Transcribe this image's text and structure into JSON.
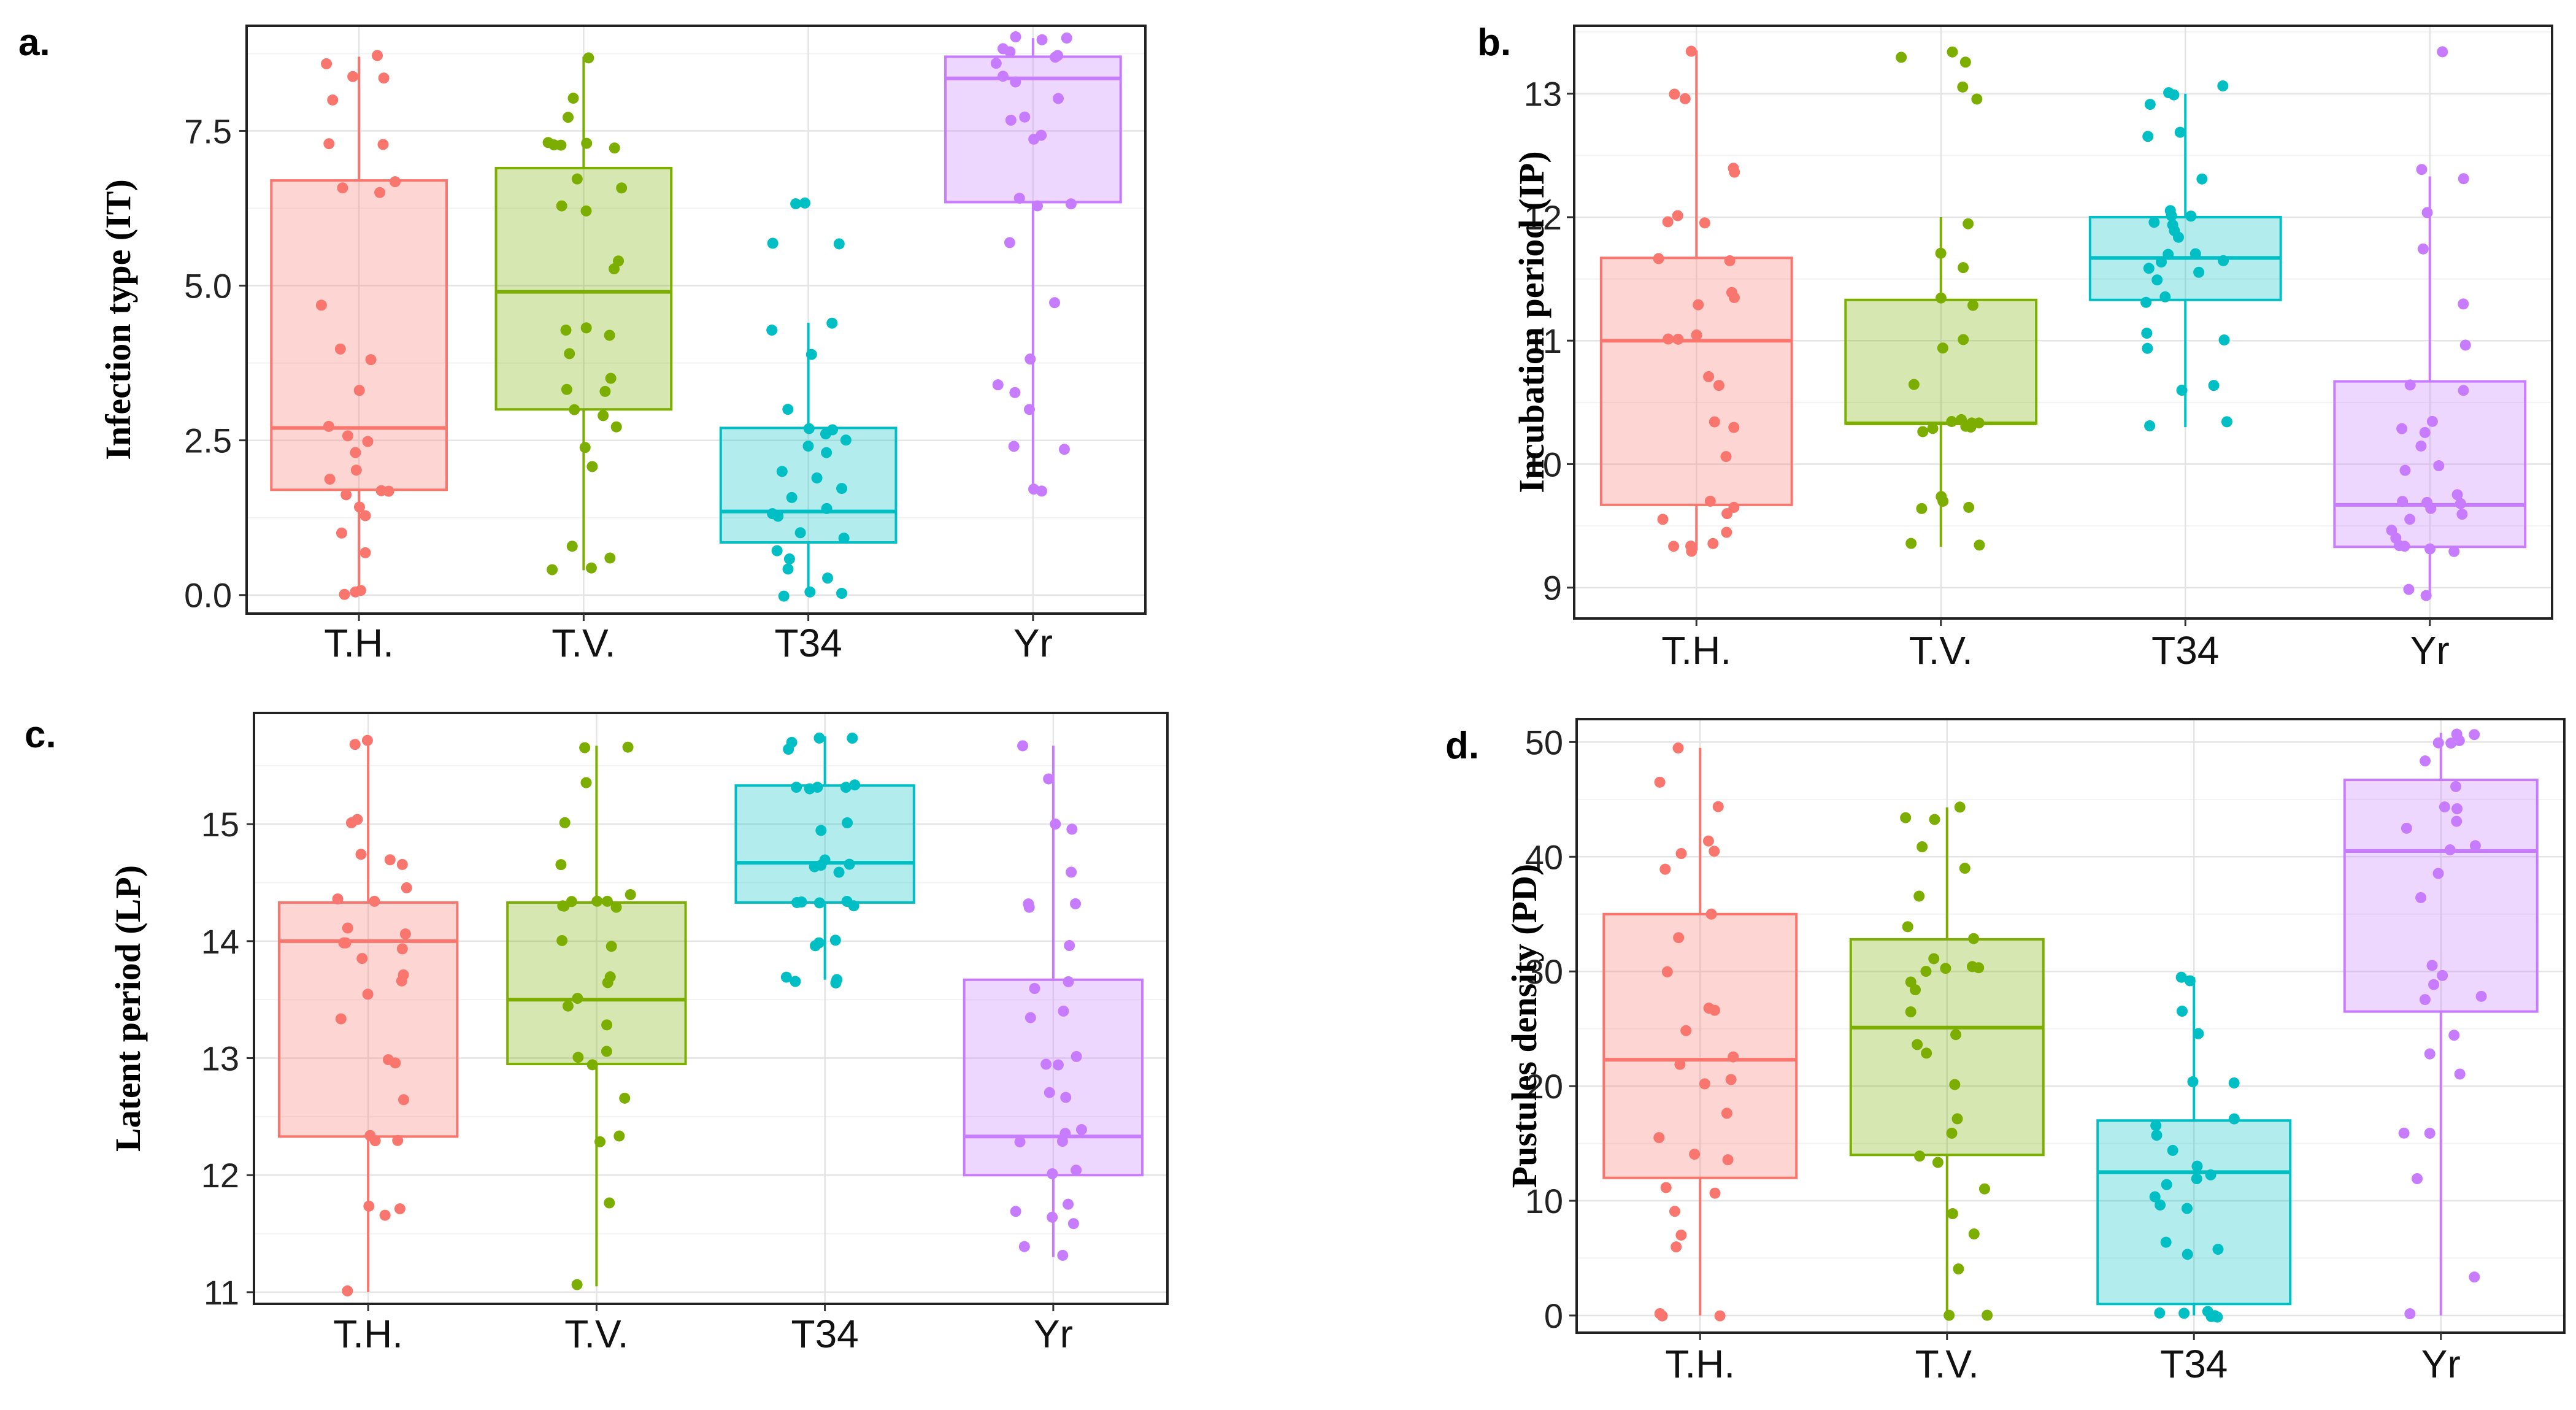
{
  "chart_data": [
    {
      "panel": "a.",
      "type": "boxplot",
      "ylabel": "Infection type (IT)",
      "ylim": [
        -0.3,
        9.2
      ],
      "yticks": [
        "0.0",
        "2.5",
        "5.0",
        "7.5"
      ],
      "ytick_values": [
        0,
        2.5,
        5,
        7.5
      ],
      "categories": [
        "T.H.",
        "T.V.",
        "T34",
        "Yr"
      ],
      "colors": [
        "#f8766d",
        "#7cae00",
        "#00bfc4",
        "#c77cff"
      ],
      "boxes": [
        {
          "category": "T.H.",
          "min": 0.0,
          "q1": 1.7,
          "median": 2.7,
          "q3": 6.7,
          "max": 8.7
        },
        {
          "category": "T.V.",
          "min": 0.4,
          "q1": 3.0,
          "median": 4.9,
          "q3": 6.9,
          "max": 8.7
        },
        {
          "category": "T34",
          "min": 0.0,
          "q1": 0.85,
          "median": 1.35,
          "q3": 2.7,
          "max": 4.4
        },
        {
          "category": "Yr",
          "min": 1.7,
          "q1": 6.35,
          "median": 8.35,
          "q3": 8.7,
          "max": 9.0
        }
      ],
      "points": [
        [
          8.7,
          8.6,
          8.4,
          8.35,
          8.0,
          7.3,
          7.3,
          6.7,
          6.6,
          6.5,
          4.7,
          4.0,
          3.8,
          3.3,
          2.7,
          2.6,
          2.5,
          2.3,
          2.0,
          1.9,
          1.7,
          1.7,
          1.6,
          1.4,
          1.3,
          1.0,
          0.7,
          0.1,
          0.05,
          0.0
        ],
        [
          8.7,
          8.0,
          7.7,
          7.3,
          7.3,
          7.3,
          7.25,
          7.25,
          6.7,
          6.6,
          6.3,
          6.2,
          5.4,
          5.3,
          4.3,
          4.3,
          4.2,
          3.9,
          3.5,
          3.3,
          3.3,
          3.0,
          2.9,
          2.7,
          2.4,
          2.1,
          0.8,
          0.6,
          0.45,
          0.4
        ],
        [
          6.35,
          6.35,
          5.7,
          5.7,
          4.4,
          4.3,
          3.9,
          3.0,
          2.7,
          2.65,
          2.6,
          2.5,
          2.4,
          2.3,
          2.0,
          1.9,
          1.7,
          1.6,
          1.4,
          1.3,
          1.3,
          1.0,
          0.9,
          0.7,
          0.6,
          0.4,
          0.3,
          0.05,
          0.0,
          0.0
        ],
        [
          9.0,
          9.0,
          9.0,
          8.8,
          8.75,
          8.7,
          8.7,
          8.6,
          8.4,
          8.3,
          8.0,
          7.7,
          7.7,
          7.4,
          7.35,
          6.4,
          6.3,
          6.3,
          5.7,
          4.7,
          3.8,
          3.4,
          3.3,
          3.0,
          2.4,
          2.35,
          1.7,
          1.7
        ]
      ]
    },
    {
      "panel": "b.",
      "type": "boxplot",
      "ylabel": "Incubation period (IP)",
      "ylim": [
        8.75,
        13.55
      ],
      "yticks": [
        "9",
        "10",
        "11",
        "12",
        "13"
      ],
      "ytick_values": [
        9,
        10,
        11,
        12,
        13
      ],
      "categories": [
        "T.H.",
        "T.V.",
        "T34",
        "Yr"
      ],
      "colors": [
        "#f8766d",
        "#7cae00",
        "#00bfc4",
        "#c77cff"
      ],
      "boxes": [
        {
          "category": "T.H.",
          "min": 9.3,
          "q1": 9.67,
          "median": 11.0,
          "q3": 11.67,
          "max": 13.35
        },
        {
          "category": "T.V.",
          "min": 9.33,
          "q1": 10.33,
          "median": 10.33,
          "q3": 11.33,
          "max": 12.0
        },
        {
          "category": "T34",
          "min": 10.3,
          "q1": 11.33,
          "median": 11.67,
          "q3": 12.0,
          "max": 13.0
        },
        {
          "category": "Yr",
          "min": 8.95,
          "q1": 9.33,
          "median": 9.67,
          "q3": 10.67,
          "max": 12.33
        }
      ],
      "points": [
        [
          13.33,
          13.0,
          12.95,
          12.4,
          12.35,
          12.0,
          11.95,
          11.95,
          11.65,
          11.65,
          11.4,
          11.35,
          11.3,
          11.05,
          11.0,
          11.0,
          10.7,
          10.65,
          10.35,
          10.3,
          10.05,
          9.7,
          9.65,
          9.6,
          9.55,
          9.45,
          9.35,
          9.33,
          9.33,
          9.3
        ],
        [
          13.33,
          13.3,
          13.25,
          13.05,
          12.95,
          11.95,
          11.7,
          11.6,
          11.35,
          11.3,
          11.0,
          10.95,
          10.65,
          10.35,
          10.35,
          10.33,
          10.33,
          10.3,
          10.3,
          10.3,
          10.3,
          10.25,
          9.75,
          9.7,
          9.65,
          9.65,
          9.35,
          9.33
        ],
        [
          13.05,
          13.0,
          13.0,
          12.9,
          12.7,
          12.65,
          12.3,
          12.05,
          12.0,
          12.0,
          11.95,
          11.95,
          11.9,
          11.85,
          11.7,
          11.7,
          11.65,
          11.65,
          11.6,
          11.55,
          11.5,
          11.35,
          11.3,
          11.05,
          11.0,
          10.95,
          10.65,
          10.6,
          10.35,
          10.3
        ],
        [
          13.35,
          12.4,
          12.3,
          12.05,
          11.75,
          11.3,
          10.95,
          10.65,
          10.6,
          10.35,
          10.3,
          10.25,
          10.15,
          10.0,
          9.95,
          9.75,
          9.7,
          9.7,
          9.68,
          9.65,
          9.6,
          9.55,
          9.45,
          9.4,
          9.35,
          9.33,
          9.3,
          9.3,
          9.0,
          8.95
        ]
      ]
    },
    {
      "panel": "c.",
      "type": "boxplot",
      "ylabel": "Latent period (LP)",
      "ylim": [
        10.9,
        15.95
      ],
      "yticks": [
        "11",
        "12",
        "13",
        "14",
        "15"
      ],
      "ytick_values": [
        11,
        12,
        13,
        14,
        15
      ],
      "categories": [
        "T.H.",
        "T.V.",
        "T34",
        "Yr"
      ],
      "colors": [
        "#f8766d",
        "#7cae00",
        "#00bfc4",
        "#c77cff"
      ],
      "boxes": [
        {
          "category": "T.H.",
          "min": 11.0,
          "q1": 12.33,
          "median": 14.0,
          "q3": 14.33,
          "max": 15.67
        },
        {
          "category": "T.V.",
          "min": 11.05,
          "q1": 12.95,
          "median": 13.5,
          "q3": 14.33,
          "max": 15.67
        },
        {
          "category": "T34",
          "min": 13.67,
          "q1": 14.33,
          "median": 14.67,
          "q3": 15.33,
          "max": 15.75
        },
        {
          "category": "Yr",
          "min": 11.3,
          "q1": 12.0,
          "median": 12.33,
          "q3": 13.67,
          "max": 15.67
        }
      ],
      "points": [
        [
          15.73,
          15.67,
          15.05,
          15.0,
          14.75,
          14.7,
          14.65,
          14.45,
          14.35,
          14.33,
          14.1,
          14.05,
          14.0,
          14.0,
          13.95,
          13.85,
          13.7,
          13.65,
          13.55,
          13.35,
          13.0,
          12.95,
          12.65,
          12.35,
          12.3,
          12.3,
          11.75,
          11.7,
          11.65,
          11.0
        ],
        [
          15.67,
          15.65,
          15.35,
          15.0,
          14.65,
          14.4,
          14.35,
          14.33,
          14.33,
          14.3,
          14.3,
          14.3,
          14.0,
          13.95,
          13.7,
          13.65,
          13.5,
          13.45,
          13.3,
          13.05,
          13.0,
          12.95,
          12.65,
          12.35,
          12.3,
          11.75,
          11.05
        ],
        [
          15.75,
          15.73,
          15.7,
          15.65,
          15.35,
          15.33,
          15.3,
          15.3,
          15.3,
          15.0,
          14.95,
          14.7,
          14.67,
          14.65,
          14.65,
          14.6,
          14.35,
          14.35,
          14.33,
          14.33,
          14.3,
          14.0,
          14.0,
          13.95,
          13.7,
          13.67,
          13.65,
          13.65
        ],
        [
          15.67,
          15.4,
          15.0,
          14.95,
          14.6,
          14.33,
          14.33,
          14.3,
          13.95,
          13.65,
          13.6,
          13.4,
          13.35,
          13.0,
          12.95,
          12.95,
          12.7,
          12.65,
          12.4,
          12.35,
          12.3,
          12.3,
          12.05,
          12.0,
          11.75,
          11.7,
          11.65,
          11.6,
          11.4,
          11.3
        ]
      ]
    },
    {
      "panel": "d.",
      "type": "boxplot",
      "ylabel": "Pustules density (PD)",
      "ylim": [
        -1.5,
        52
      ],
      "yticks": [
        "0",
        "10",
        "20",
        "30",
        "40",
        "50"
      ],
      "ytick_values": [
        0,
        10,
        20,
        30,
        40,
        50
      ],
      "categories": [
        "T.H.",
        "T.V.",
        "T34",
        "Yr"
      ],
      "colors": [
        "#f8766d",
        "#7cae00",
        "#00bfc4",
        "#c77cff"
      ],
      "boxes": [
        {
          "category": "T.H.",
          "min": 0.0,
          "q1": 12.0,
          "median": 22.3,
          "q3": 35.0,
          "max": 49.5
        },
        {
          "category": "T.V.",
          "min": 0.0,
          "q1": 14.0,
          "median": 25.1,
          "q3": 32.8,
          "max": 44.3
        },
        {
          "category": "T34",
          "min": 0.0,
          "q1": 1.0,
          "median": 12.5,
          "q3": 17.0,
          "max": 29.5
        },
        {
          "category": "Yr",
          "min": 0.0,
          "q1": 26.5,
          "median": 40.5,
          "q3": 46.7,
          "max": 50.8
        }
      ],
      "points": [
        [
          49.4,
          46.5,
          44.5,
          41.5,
          40.5,
          40.2,
          38.8,
          34.9,
          33.1,
          30.1,
          26.8,
          26.7,
          24.7,
          22.6,
          21.8,
          20.5,
          20.3,
          17.6,
          15.6,
          14.2,
          13.7,
          11.2,
          10.6,
          9.2,
          7.0,
          6.0,
          0.0,
          0.0,
          0.0
        ],
        [
          44.3,
          43.5,
          43.1,
          40.9,
          38.9,
          36.5,
          34.0,
          32.9,
          31.0,
          30.5,
          30.4,
          30.2,
          30.0,
          29.0,
          28.4,
          26.5,
          24.5,
          23.5,
          23.0,
          20.0,
          17.0,
          16.0,
          14.0,
          13.5,
          11.0,
          9.0,
          7.0,
          4.0,
          0.0,
          0.0
        ],
        [
          29.6,
          29.2,
          26.5,
          24.5,
          20.5,
          20.3,
          17.0,
          16.5,
          15.8,
          14.5,
          13.0,
          12.3,
          12.0,
          11.4,
          10.2,
          9.6,
          9.4,
          6.5,
          5.8,
          5.4,
          0.3,
          0.2,
          0.1,
          0.0,
          0.0,
          0.0
        ],
        [
          50.8,
          50.5,
          50.2,
          50.0,
          49.8,
          48.5,
          46.0,
          44.5,
          44.2,
          43.0,
          42.5,
          41.0,
          40.5,
          38.5,
          36.5,
          30.5,
          29.5,
          29.0,
          27.8,
          27.5,
          24.5,
          22.8,
          21.0,
          16.0,
          15.8,
          12.0,
          3.3,
          0.0
        ]
      ]
    }
  ]
}
